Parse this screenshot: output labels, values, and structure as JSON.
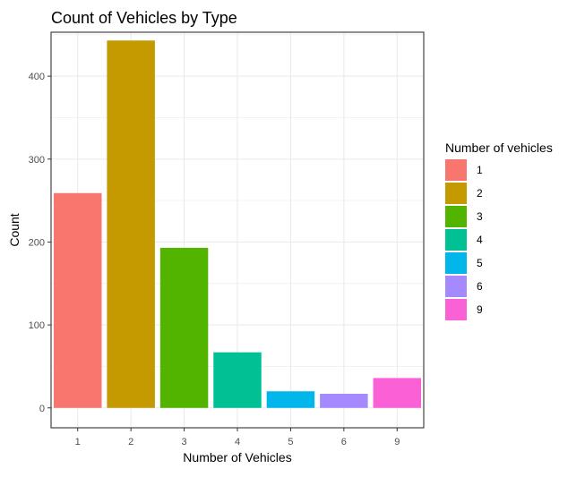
{
  "chart_data": {
    "type": "bar",
    "title": "Count of Vehicles by Type",
    "xlabel": "Number of Vehicles",
    "ylabel": "Count",
    "categories": [
      "1",
      "2",
      "3",
      "4",
      "5",
      "6",
      "9"
    ],
    "values": [
      259,
      443,
      193,
      67,
      20,
      17,
      36
    ],
    "colors": [
      "#F8766D",
      "#C49A00",
      "#53B400",
      "#00C094",
      "#00B6EB",
      "#A58AFF",
      "#FB61D7"
    ],
    "ylim": [
      -24,
      453
    ],
    "yticks": [
      0,
      100,
      200,
      300,
      400
    ],
    "grid": true,
    "legend": {
      "title": "Number of vehicles",
      "position": "right",
      "items": [
        "1",
        "2",
        "3",
        "4",
        "5",
        "6",
        "9"
      ]
    }
  }
}
